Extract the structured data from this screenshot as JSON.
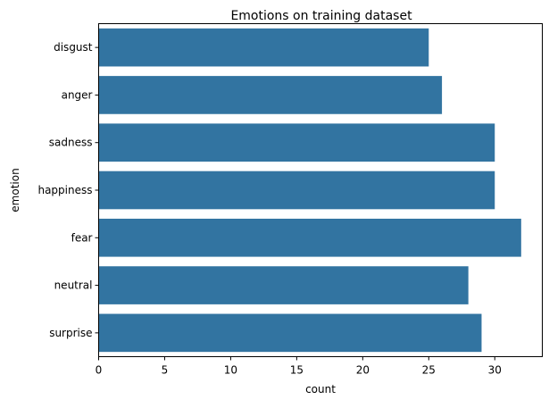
{
  "chart_data": {
    "type": "bar",
    "orientation": "horizontal",
    "title": "Emotions on training dataset",
    "xlabel": "count",
    "ylabel": "emotion",
    "categories": [
      "disgust",
      "anger",
      "sadness",
      "happiness",
      "fear",
      "neutral",
      "surprise"
    ],
    "values": [
      25,
      26,
      30,
      30,
      32,
      28,
      29
    ],
    "xlim": [
      0,
      33.6
    ],
    "xticks": [
      0,
      5,
      10,
      15,
      20,
      25,
      30
    ],
    "grid": false,
    "legend": "none",
    "bar_color": "#3274a1"
  }
}
